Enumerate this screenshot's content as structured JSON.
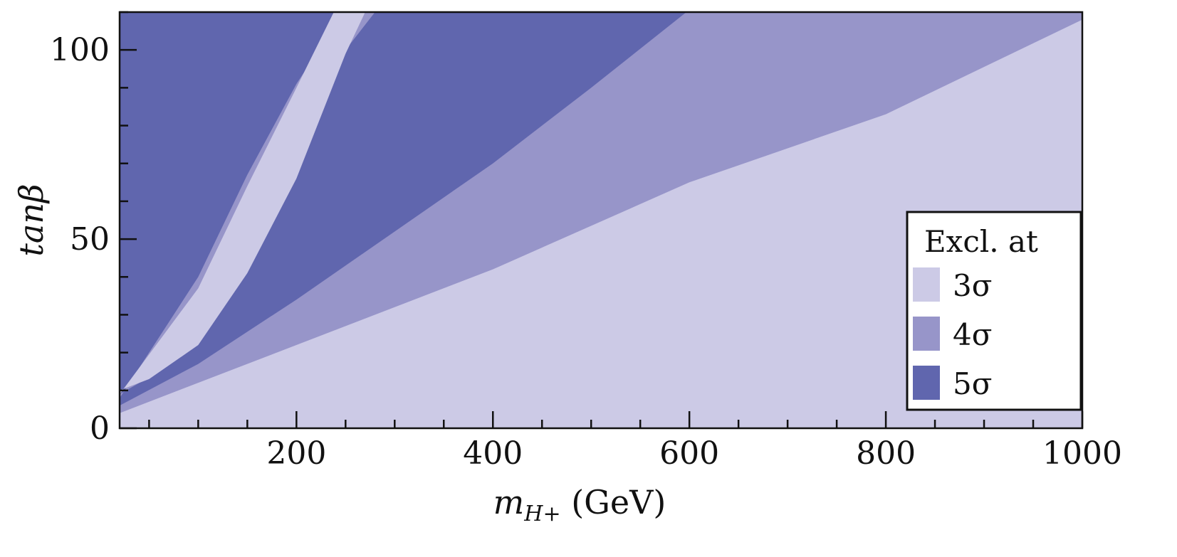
{
  "chart_data": {
    "type": "heatmap",
    "title": "",
    "xlabel": "m",
    "xlabel_sub": "H+",
    "xlabel_unit": "(GeV)",
    "ylabel": "tanβ",
    "xlim": [
      20,
      1000
    ],
    "ylim": [
      0,
      110
    ],
    "x_major_ticks": [
      200,
      400,
      600,
      800,
      1000
    ],
    "x_major_labels": [
      "200",
      "400",
      "600",
      "800",
      "1000"
    ],
    "y_major_ticks": [
      0,
      50,
      100
    ],
    "y_major_labels": [
      "0",
      "50",
      "100"
    ],
    "x_minor_step": 50,
    "y_minor_step": 10,
    "grid": false,
    "legend": {
      "position": "bottom-right",
      "title": "Excl. at",
      "entries": [
        {
          "label": "3σ",
          "color": "#cccae6"
        },
        {
          "label": "4σ",
          "color": "#9795c9"
        },
        {
          "label": "5σ",
          "color": "#6066ae"
        }
      ]
    },
    "regions": [
      {
        "name": "3σ",
        "color": "#cccae6",
        "x": [
          20,
          1000,
          1000,
          20
        ],
        "y": [
          0,
          0,
          110,
          110
        ]
      },
      {
        "name": "4σ",
        "color": "#9795c9",
        "x": [
          20,
          200,
          400,
          600,
          800,
          1000,
          1000,
          20
        ],
        "y": [
          4,
          22,
          42,
          65,
          83,
          108,
          110,
          110
        ]
      },
      {
        "name": "5σ",
        "color": "#6066ae",
        "x": [
          20,
          100,
          200,
          300,
          400,
          500,
          597,
          20
        ],
        "y": [
          6,
          17,
          34,
          52,
          70,
          90,
          110,
          110
        ]
      },
      {
        "name": "4σ",
        "color": "#9795c9",
        "x": [
          20,
          100,
          150,
          200,
          248,
          300,
          300,
          280,
          250,
          200,
          150,
          100,
          40,
          20
        ],
        "y": [
          8,
          40,
          67,
          91,
          110,
          110,
          110,
          110,
          100,
          68,
          42,
          23,
          12,
          9
        ]
      },
      {
        "name": "3σ",
        "color": "#cccae6",
        "x": [
          20,
          100,
          150,
          200,
          238,
          290,
          290,
          270,
          250,
          200,
          150,
          100,
          50,
          20
        ],
        "y": [
          9,
          37,
          64,
          90,
          110,
          110,
          110,
          110,
          99,
          66,
          41,
          22,
          13,
          10
        ]
      }
    ]
  }
}
